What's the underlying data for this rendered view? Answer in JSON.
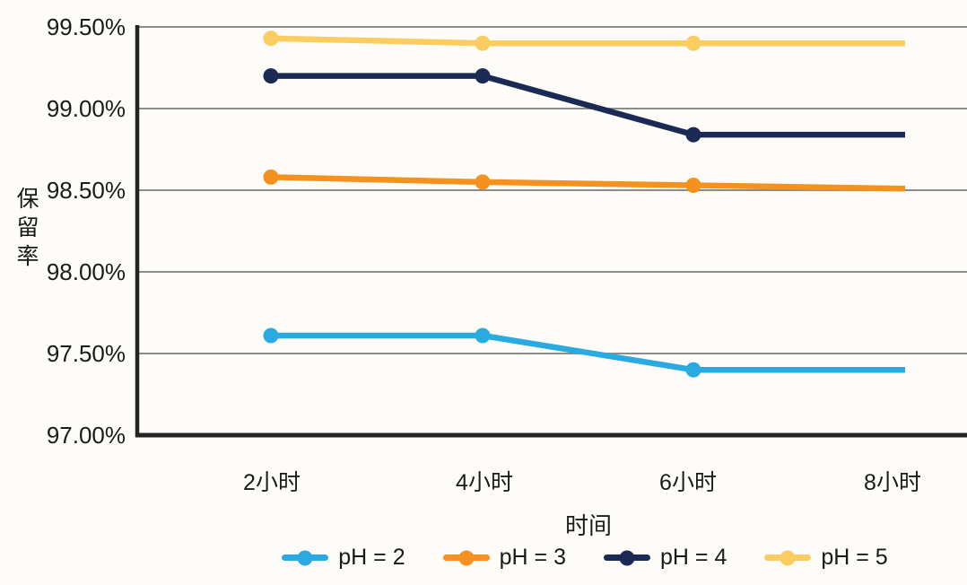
{
  "chart_data": {
    "type": "line",
    "title": "",
    "xlabel": "时间",
    "ylabel": "保留率",
    "categories": [
      "2小时",
      "4小时",
      "6小时",
      "8小时"
    ],
    "series": [
      {
        "name": "pH = 2",
        "color": "#29AAE1",
        "values": [
          97.61,
          97.61,
          97.4,
          97.4
        ]
      },
      {
        "name": "pH = 3",
        "color": "#F5911E",
        "values": [
          98.58,
          98.55,
          98.53,
          98.51
        ]
      },
      {
        "name": "pH = 4",
        "color": "#1B2A54",
        "values": [
          99.2,
          99.2,
          98.84,
          98.84
        ]
      },
      {
        "name": "pH = 5",
        "color": "#FBCD60",
        "values": [
          99.43,
          99.4,
          99.4,
          99.4
        ]
      }
    ],
    "ylim": [
      97.0,
      99.5
    ],
    "ytick_step": 0.5,
    "yticks": [
      "99.50%",
      "99.00%",
      "98.50%",
      "98.00%",
      "97.50%",
      "97.00%"
    ],
    "grid": "horizontal",
    "legend_position": "bottom"
  },
  "colors": {
    "background": "#FDFCF8",
    "gridline": "#8C8C8C",
    "axis": "#242424",
    "text": "#1A1A1A"
  }
}
